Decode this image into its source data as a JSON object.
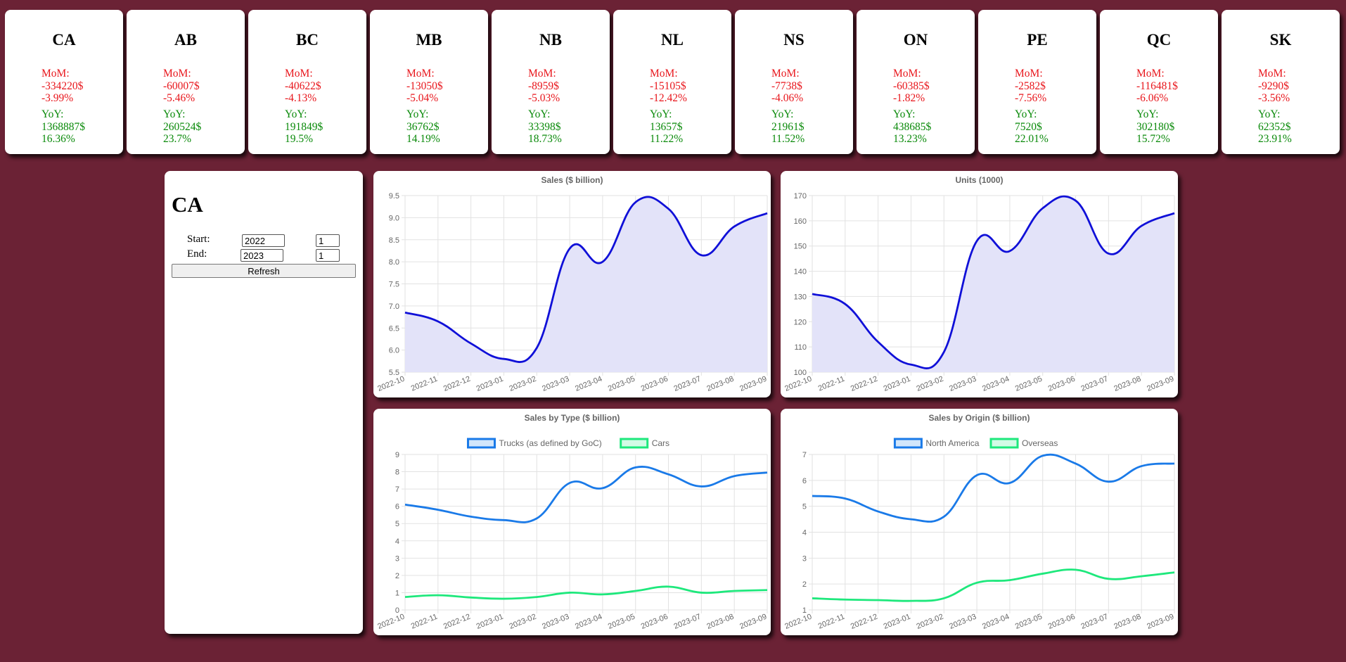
{
  "provinces": [
    {
      "code": "CA",
      "mom_label": "MoM:",
      "mom_value": "-334220$",
      "mom_pct": "-3.99%",
      "yoy_label": "YoY:",
      "yoy_value": "1368887$",
      "yoy_pct": "16.36%"
    },
    {
      "code": "AB",
      "mom_label": "MoM:",
      "mom_value": "-60007$",
      "mom_pct": "-5.46%",
      "yoy_label": "YoY:",
      "yoy_value": "260524$",
      "yoy_pct": "23.7%"
    },
    {
      "code": "BC",
      "mom_label": "MoM:",
      "mom_value": "-40622$",
      "mom_pct": "-4.13%",
      "yoy_label": "YoY:",
      "yoy_value": "191849$",
      "yoy_pct": "19.5%"
    },
    {
      "code": "MB",
      "mom_label": "MoM:",
      "mom_value": "-13050$",
      "mom_pct": "-5.04%",
      "yoy_label": "YoY:",
      "yoy_value": "36762$",
      "yoy_pct": "14.19%"
    },
    {
      "code": "NB",
      "mom_label": "MoM:",
      "mom_value": "-8959$",
      "mom_pct": "-5.03%",
      "yoy_label": "YoY:",
      "yoy_value": "33398$",
      "yoy_pct": "18.73%"
    },
    {
      "code": "NL",
      "mom_label": "MoM:",
      "mom_value": "-15105$",
      "mom_pct": "-12.42%",
      "yoy_label": "YoY:",
      "yoy_value": "13657$",
      "yoy_pct": "11.22%"
    },
    {
      "code": "NS",
      "mom_label": "MoM:",
      "mom_value": "-7738$",
      "mom_pct": "-4.06%",
      "yoy_label": "YoY:",
      "yoy_value": "21961$",
      "yoy_pct": "11.52%"
    },
    {
      "code": "ON",
      "mom_label": "MoM:",
      "mom_value": "-60385$",
      "mom_pct": "-1.82%",
      "yoy_label": "YoY:",
      "yoy_value": "438685$",
      "yoy_pct": "13.23%"
    },
    {
      "code": "PE",
      "mom_label": "MoM:",
      "mom_value": "-2582$",
      "mom_pct": "-7.56%",
      "yoy_label": "YoY:",
      "yoy_value": "7520$",
      "yoy_pct": "22.01%"
    },
    {
      "code": "QC",
      "mom_label": "MoM:",
      "mom_value": "-116481$",
      "mom_pct": "-6.06%",
      "yoy_label": "YoY:",
      "yoy_value": "302180$",
      "yoy_pct": "15.72%"
    },
    {
      "code": "SK",
      "mom_label": "MoM:",
      "mom_value": "-9290$",
      "mom_pct": "-3.56%",
      "yoy_label": "YoY:",
      "yoy_value": "62352$",
      "yoy_pct": "23.91%"
    }
  ],
  "controls": {
    "title": "CA",
    "start_label": "Start:",
    "start_year": "2022",
    "start_month": "1",
    "end_label": "End:",
    "end_year": "2023",
    "end_month": "1",
    "refresh_label": "Refresh"
  },
  "colors": {
    "background": "#6b2235",
    "mom": "#e8151b",
    "yoy": "#0a8a0a",
    "line_dark": "#1010d8",
    "fill": "#e3e3f9",
    "series_blue": "#1a7ae8",
    "series_green": "#1ee87c"
  },
  "chart_data": [
    {
      "type": "area",
      "title": "Sales ($ billion)",
      "x": [
        "2022-10",
        "2022-11",
        "2022-12",
        "2023-01",
        "2023-02",
        "2023-03",
        "2023-04",
        "2023-05",
        "2023-06",
        "2023-07",
        "2023-08",
        "2023-09"
      ],
      "series": [
        {
          "values": [
            6.85,
            6.65,
            6.15,
            5.8,
            6.05,
            8.3,
            8.0,
            9.35,
            9.2,
            8.15,
            8.8,
            9.1
          ]
        }
      ],
      "ylim": [
        5.5,
        9.5
      ],
      "yticks": [
        "5.5",
        "6.0",
        "6.5",
        "7.0",
        "7.5",
        "8.0",
        "8.5",
        "9.0",
        "9.5"
      ],
      "grid": true
    },
    {
      "type": "area",
      "title": "Units (1000)",
      "x": [
        "2022-10",
        "2022-11",
        "2022-12",
        "2023-01",
        "2023-02",
        "2023-03",
        "2023-04",
        "2023-05",
        "2023-06",
        "2023-07",
        "2023-08",
        "2023-09"
      ],
      "series": [
        {
          "values": [
            131,
            127,
            112,
            103,
            108,
            152,
            148,
            165,
            168,
            147,
            158,
            163
          ]
        }
      ],
      "ylim": [
        100,
        170
      ],
      "yticks": [
        "100",
        "110",
        "120",
        "130",
        "140",
        "150",
        "160",
        "170"
      ],
      "grid": true
    },
    {
      "type": "line",
      "title": "Sales by Type ($ billion)",
      "x": [
        "2022-10",
        "2022-11",
        "2022-12",
        "2023-01",
        "2023-02",
        "2023-03",
        "2023-04",
        "2023-05",
        "2023-06",
        "2023-07",
        "2023-08",
        "2023-09"
      ],
      "series": [
        {
          "name": "Trucks (as defined by GoC)",
          "values": [
            6.1,
            5.8,
            5.4,
            5.2,
            5.3,
            7.35,
            7.05,
            8.25,
            7.85,
            7.15,
            7.75,
            7.95
          ]
        },
        {
          "name": "Cars",
          "values": [
            0.75,
            0.85,
            0.72,
            0.65,
            0.75,
            1.0,
            0.9,
            1.1,
            1.35,
            1.0,
            1.1,
            1.15
          ]
        }
      ],
      "ylim": [
        0,
        9
      ],
      "yticks": [
        "0",
        "1",
        "2",
        "3",
        "4",
        "5",
        "6",
        "7",
        "8",
        "9"
      ],
      "legend": "top",
      "grid": true
    },
    {
      "type": "line",
      "title": "Sales by Origin ($ billion)",
      "x": [
        "2022-10",
        "2022-11",
        "2022-12",
        "2023-01",
        "2023-02",
        "2023-03",
        "2023-04",
        "2023-05",
        "2023-06",
        "2023-07",
        "2023-08",
        "2023-09"
      ],
      "series": [
        {
          "name": "North America",
          "values": [
            5.4,
            5.3,
            4.8,
            4.5,
            4.6,
            6.2,
            5.9,
            6.95,
            6.65,
            5.95,
            6.55,
            6.65
          ]
        },
        {
          "name": "Overseas",
          "values": [
            1.45,
            1.4,
            1.38,
            1.35,
            1.45,
            2.05,
            2.15,
            2.4,
            2.55,
            2.2,
            2.3,
            2.45
          ]
        }
      ],
      "ylim": [
        1,
        7
      ],
      "yticks": [
        "1",
        "2",
        "3",
        "4",
        "5",
        "6",
        "7"
      ],
      "legend": "top",
      "grid": true
    }
  ]
}
